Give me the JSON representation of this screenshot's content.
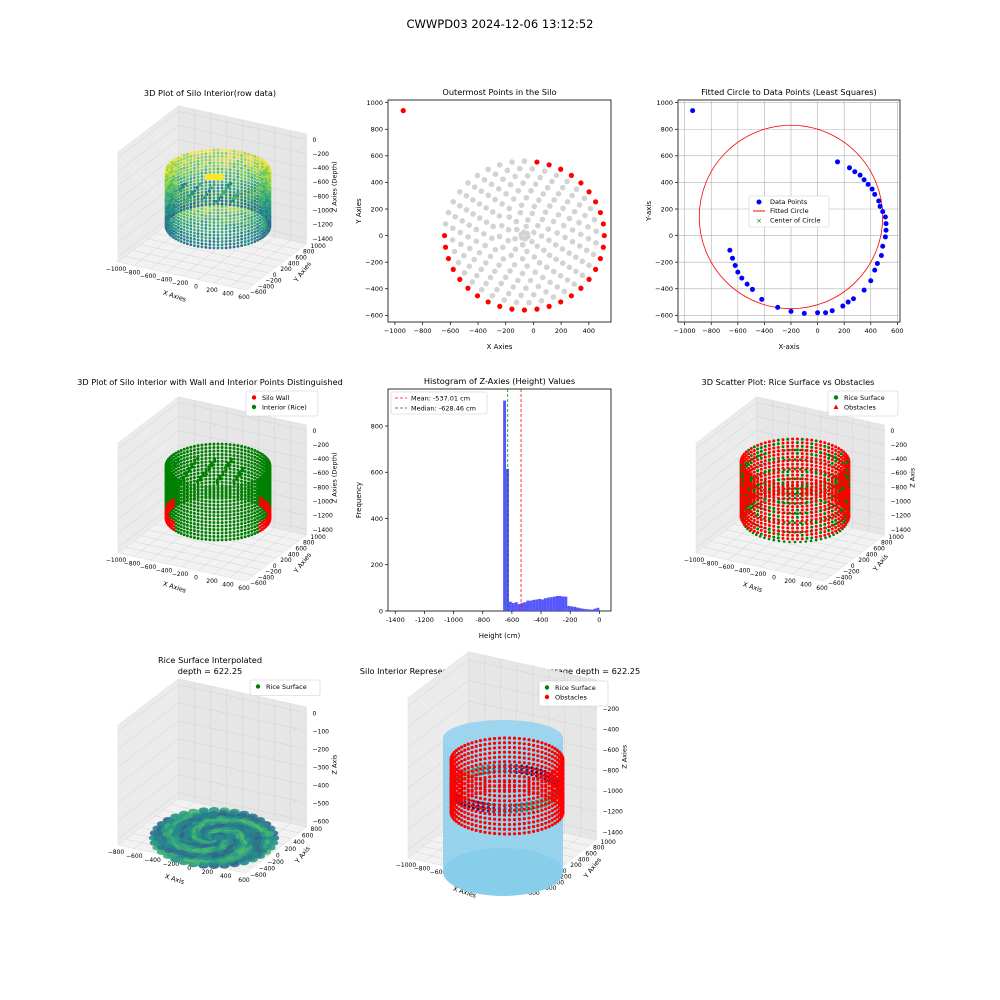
{
  "figure": {
    "suptitle": "CWWPD03 2024-12-06 13:12:52"
  },
  "colors": {
    "grey_pts": "#d3d3d3",
    "red": "#ff0000",
    "blue": "#0000ff",
    "green": "#008000",
    "hist": "#4d4dff",
    "skyblue": "#87ceeb",
    "pane": "#f2f2f2"
  },
  "chart_data": [
    {
      "id": "p1",
      "type": "scatter3d",
      "title": "3D Plot of Silo Interior(row data)",
      "xlabel": "X Axies",
      "ylabel": "Y Axies",
      "zlabel": "Z Axies (Depth)",
      "xticks": [
        "−1000",
        "−800",
        "−600",
        "−400",
        "−200",
        "0",
        "200",
        "400",
        "600"
      ],
      "yticks": [
        "−600",
        "−400",
        "−200",
        "0",
        "200",
        "400",
        "600",
        "800",
        "1000"
      ],
      "zticks": [
        "−1400",
        "−1200",
        "−1000",
        "−800",
        "−600",
        "−400",
        "−200",
        "0"
      ],
      "xlim": [
        -1000,
        600
      ],
      "ylim": [
        -600,
        1000
      ],
      "zlim": [
        -1500,
        100
      ],
      "colormap": "viridis"
    },
    {
      "id": "p2",
      "type": "scatter",
      "title": "Outermost Points in the Silo",
      "xlabel": "X Axies",
      "ylabel": "Y Axies",
      "xticks": [
        "−1000",
        "−800",
        "−600",
        "−400",
        "−200",
        "0",
        "200",
        "400"
      ],
      "yticks": [
        "−600",
        "−400",
        "−200",
        "0",
        "200",
        "400",
        "600",
        "800",
        "1000"
      ],
      "xlim": [
        -1050,
        560
      ],
      "ylim": [
        -650,
        1020
      ],
      "outlier": [
        -940,
        940
      ]
    },
    {
      "id": "p3",
      "type": "scatter",
      "title": "Fitted Circle to Data Points (Least Squares)",
      "xlabel": "X-axis",
      "ylabel": "Y-axis",
      "xticks": [
        "−1000",
        "−800",
        "−600",
        "−400",
        "−200",
        "0",
        "200",
        "400",
        "600"
      ],
      "yticks": [
        "−600",
        "−400",
        "−200",
        "0",
        "200",
        "400",
        "600",
        "800",
        "1000"
      ],
      "xlim": [
        -1050,
        620
      ],
      "ylim": [
        -650,
        1020
      ],
      "legend": [
        "Data Points",
        "Fitted Circle",
        "Center of Circle"
      ],
      "fitted_circle": {
        "cx": -200,
        "cy": 140,
        "r": 690
      },
      "data_points": [
        [
          -940,
          940
        ],
        [
          -660,
          -110
        ],
        [
          -640,
          -170
        ],
        [
          -620,
          -225
        ],
        [
          -600,
          -275
        ],
        [
          -570,
          -320
        ],
        [
          -530,
          -365
        ],
        [
          -490,
          -405
        ],
        [
          -420,
          -480
        ],
        [
          -300,
          -540
        ],
        [
          -200,
          -570
        ],
        [
          -100,
          -585
        ],
        [
          0,
          -580
        ],
        [
          60,
          -580
        ],
        [
          110,
          -565
        ],
        [
          190,
          -530
        ],
        [
          230,
          -500
        ],
        [
          270,
          -475
        ],
        [
          350,
          -410
        ],
        [
          400,
          -340
        ],
        [
          430,
          -260
        ],
        [
          450,
          -210
        ],
        [
          480,
          -150
        ],
        [
          490,
          -80
        ],
        [
          510,
          -10
        ],
        [
          515,
          40
        ],
        [
          515,
          90
        ],
        [
          510,
          140
        ],
        [
          490,
          180
        ],
        [
          470,
          220
        ],
        [
          460,
          260
        ],
        [
          430,
          310
        ],
        [
          410,
          350
        ],
        [
          380,
          385
        ],
        [
          350,
          420
        ],
        [
          320,
          455
        ],
        [
          280,
          480
        ],
        [
          240,
          510
        ],
        [
          150,
          555
        ]
      ]
    },
    {
      "id": "p4",
      "type": "scatter3d",
      "title": "3D Plot of Silo Interior with Wall and Interior Points Distinguished",
      "xlabel": "X Axies",
      "ylabel": "Y Axies",
      "zlabel": "Z Axies (Depth)",
      "xticks": [
        "−1000",
        "−800",
        "−600",
        "−400",
        "−200",
        "0",
        "200",
        "400",
        "600"
      ],
      "yticks": [
        "−600",
        "−400",
        "−200",
        "0",
        "200",
        "400",
        "600",
        "800",
        "1000"
      ],
      "zticks": [
        "−1400",
        "−1200",
        "−1000",
        "−800",
        "−600",
        "−400",
        "−200",
        "0"
      ],
      "legend": [
        "Silo Wall",
        "Interior (Rice)"
      ]
    },
    {
      "id": "p5",
      "type": "bar",
      "title": "Histogram of Z-Axies (Height) Values",
      "xlabel": "Height (cm)",
      "ylabel": "Frequency",
      "xticks": [
        -1400,
        -1200,
        -1000,
        -800,
        -600,
        -400,
        -200,
        0
      ],
      "yticks": [
        0,
        200,
        400,
        600,
        800
      ],
      "xlim": [
        -1450,
        80
      ],
      "ylim": [
        0,
        960
      ],
      "legend": [
        "Mean: -537.01 cm",
        "Median: -628.46 cm"
      ],
      "mean": -537.01,
      "median": -628.46,
      "bins": [
        [
          -660,
          -640,
          910
        ],
        [
          -640,
          -620,
          615
        ],
        [
          -620,
          -600,
          40
        ],
        [
          -600,
          -580,
          35
        ],
        [
          -580,
          -560,
          38
        ],
        [
          -560,
          -540,
          30
        ],
        [
          -540,
          -520,
          35
        ],
        [
          -520,
          -500,
          38
        ],
        [
          -500,
          -480,
          45
        ],
        [
          -480,
          -460,
          45
        ],
        [
          -460,
          -440,
          48
        ],
        [
          -440,
          -420,
          50
        ],
        [
          -420,
          -400,
          52
        ],
        [
          -400,
          -380,
          50
        ],
        [
          -380,
          -360,
          55
        ],
        [
          -360,
          -340,
          58
        ],
        [
          -340,
          -320,
          60
        ],
        [
          -320,
          -300,
          62
        ],
        [
          -300,
          -280,
          65
        ],
        [
          -280,
          -260,
          65
        ],
        [
          -260,
          -240,
          63
        ],
        [
          -240,
          -220,
          62
        ],
        [
          -220,
          -200,
          22
        ],
        [
          -200,
          -180,
          20
        ],
        [
          -180,
          -160,
          18
        ],
        [
          -160,
          -140,
          15
        ],
        [
          -140,
          -120,
          12
        ],
        [
          -120,
          -100,
          10
        ],
        [
          -100,
          -80,
          8
        ],
        [
          -80,
          -60,
          7
        ],
        [
          -60,
          -40,
          6
        ],
        [
          -40,
          -20,
          10
        ],
        [
          -20,
          0,
          14
        ]
      ]
    },
    {
      "id": "p6",
      "type": "scatter3d",
      "title": "3D Scatter Plot: Rice Surface vs Obstacles",
      "xlabel": "X Axis",
      "ylabel": "Y Axis",
      "zlabel": "Z Axis",
      "xticks": [
        "−1000",
        "−800",
        "−600",
        "−400",
        "−200",
        "0",
        "200",
        "400",
        "600"
      ],
      "yticks": [
        "−600",
        "−400",
        "−200",
        "0",
        "200",
        "400",
        "600",
        "800",
        "1000"
      ],
      "zticks": [
        "−1400",
        "−1200",
        "−1000",
        "−800",
        "−600",
        "−400",
        "−200",
        "0"
      ],
      "legend": [
        "Rice Surface",
        "Obstacles"
      ]
    },
    {
      "id": "p7",
      "type": "surface3d",
      "title": "Rice Surface Interpolated",
      "subtitle": "depth = 622.25",
      "xlabel": "X Axis",
      "ylabel": "Y Axis",
      "zlabel": "Z Axis",
      "xticks": [
        "−800",
        "−600",
        "−400",
        "−200",
        "0",
        "200",
        "400",
        "600"
      ],
      "yticks": [
        "−600",
        "−400",
        "−200",
        "0",
        "200",
        "400",
        "600",
        "800"
      ],
      "zticks": [
        "−600",
        "−500",
        "−400",
        "−300",
        "−200",
        "−100",
        "0"
      ],
      "legend": [
        "Rice Surface"
      ]
    },
    {
      "id": "p8",
      "type": "scatter3d",
      "title": "Silo Interior Representation using weighted average depth = 622.25",
      "xlabel": "X Axies",
      "ylabel": "Y Axies",
      "zlabel": "Z Axies",
      "xticks": [
        "−1000",
        "−800",
        "−600",
        "−400",
        "−200",
        "0",
        "200",
        "400",
        "600"
      ],
      "yticks": [
        "−600",
        "−400",
        "−200",
        "0",
        "200",
        "400",
        "600",
        "800",
        "1000"
      ],
      "zticks": [
        "−1400",
        "−1200",
        "−1000",
        "−800",
        "−600",
        "−400",
        "−200",
        "0"
      ],
      "legend": [
        "Rice Surface",
        "Obstacles"
      ]
    }
  ]
}
